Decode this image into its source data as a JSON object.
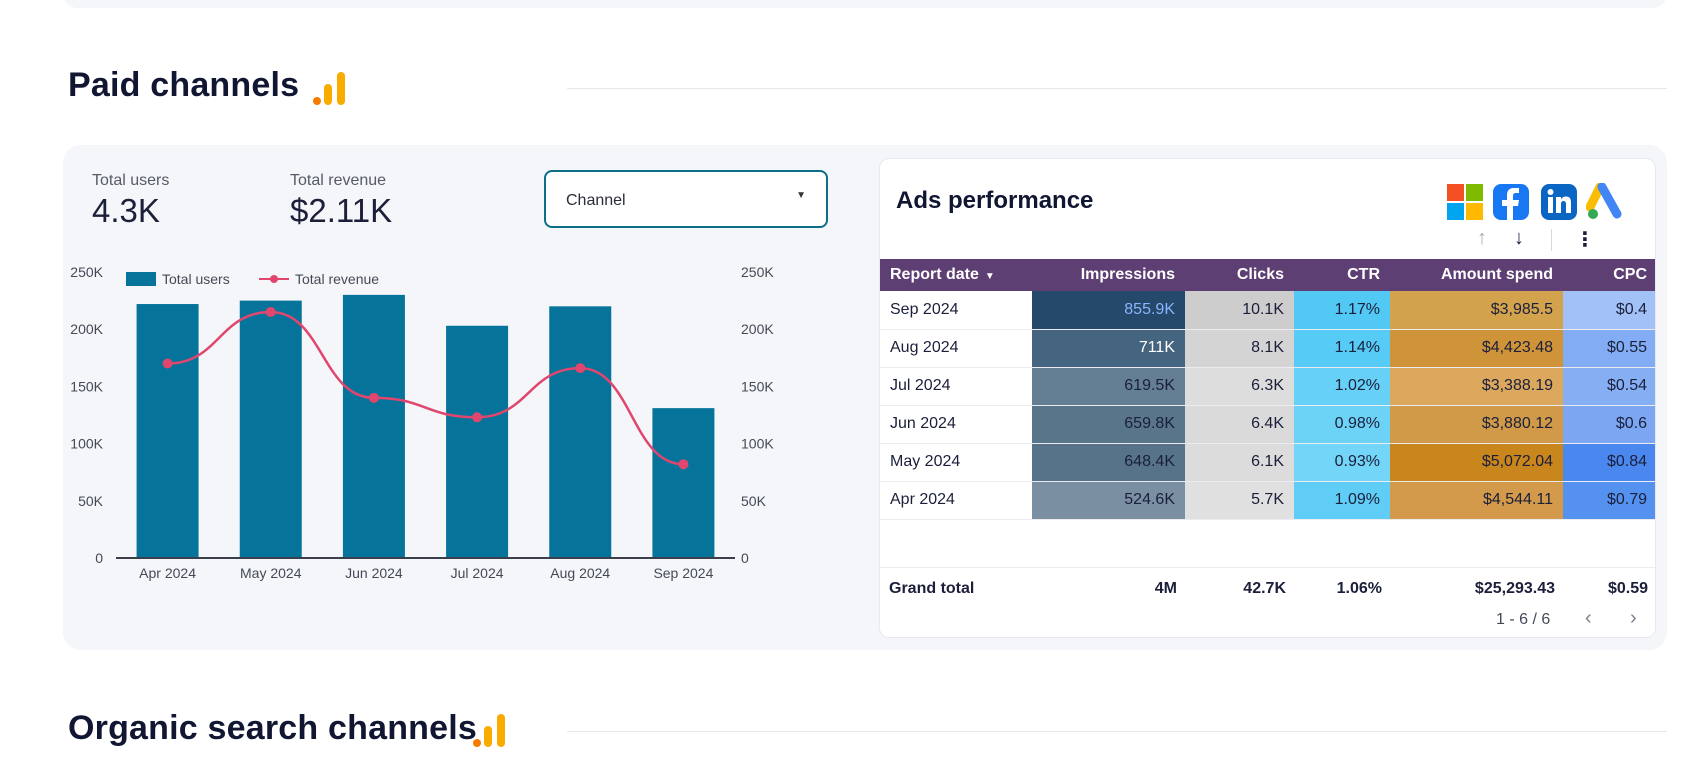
{
  "sections": {
    "paid_title": "Paid channels",
    "organic_title": "Organic search channels"
  },
  "kpis": {
    "users_label": "Total users",
    "users_value": "4.3K",
    "revenue_label": "Total revenue",
    "revenue_value": "$2.11K"
  },
  "filter": {
    "label": "Channel"
  },
  "chart_data": {
    "type": "bar",
    "categories": [
      "Apr 2024",
      "May 2024",
      "Jun 2024",
      "Jul 2024",
      "Aug 2024",
      "Sep 2024"
    ],
    "series": [
      {
        "name": "Total users",
        "kind": "bar",
        "axis": "left",
        "values": [
          222000,
          225000,
          230000,
          203000,
          220000,
          131000
        ]
      },
      {
        "name": "Total revenue",
        "kind": "line",
        "axis": "right",
        "values": [
          170000,
          215000,
          140000,
          123000,
          166000,
          82000
        ]
      }
    ],
    "y_ticks": [
      "0",
      "50K",
      "100K",
      "150K",
      "200K",
      "250K"
    ],
    "ylim": [
      0,
      250000
    ],
    "legend": "top-left",
    "colors": {
      "bar": "#06749a",
      "line": "#e0466e"
    }
  },
  "ads": {
    "title": "Ads performance",
    "brand_icons": [
      "microsoft-icon",
      "facebook-icon",
      "linkedin-icon",
      "google-ads-icon"
    ],
    "columns": [
      "Report date",
      "Impressions",
      "Clicks",
      "CTR",
      "Amount spend",
      "CPC"
    ],
    "rows": [
      [
        "Sep 2024",
        "855.9K",
        "10.1K",
        "1.17%",
        "$3,985.5",
        "$0.4"
      ],
      [
        "Aug 2024",
        "711K",
        "8.1K",
        "1.14%",
        "$4,423.48",
        "$0.55"
      ],
      [
        "Jul 2024",
        "619.5K",
        "6.3K",
        "1.02%",
        "$3,388.19",
        "$0.54"
      ],
      [
        "Jun 2024",
        "659.8K",
        "6.4K",
        "0.98%",
        "$3,880.12",
        "$0.6"
      ],
      [
        "May 2024",
        "648.4K",
        "6.1K",
        "0.93%",
        "$5,072.04",
        "$0.84"
      ],
      [
        "Apr 2024",
        "524.6K",
        "5.7K",
        "1.09%",
        "$4,544.11",
        "$0.79"
      ]
    ],
    "cell_colors": [
      [
        "#25496a",
        "#cdcdcd",
        "#52c9f4",
        "#d3a24c",
        "#a2c1f6"
      ],
      [
        "#45647f",
        "#d4d4d4",
        "#55cbf5",
        "#cf943a",
        "#82acf3"
      ],
      [
        "#647e93",
        "#dddddd",
        "#66d0f6",
        "#dba85e",
        "#86aff3"
      ],
      [
        "#587589",
        "#dadada",
        "#6dd3f6",
        "#d19a48",
        "#7aa6f2"
      ],
      [
        "#567389",
        "#dcdcdc",
        "#73d5f7",
        "#c9861c",
        "#4a87ee"
      ],
      [
        "#7a8fa1",
        "#e0e0e0",
        "#5fcdf5",
        "#d29a4a",
        "#5592ef"
      ]
    ],
    "text_colors": [
      "#8ab4ff",
      "#ffffff",
      "#1b1f3a",
      "#1b1f3a",
      "#1b1f3a",
      "#1b1f3a"
    ],
    "grand_total": {
      "label": "Grand total",
      "values": [
        "4M",
        "42.7K",
        "1.06%",
        "$25,293.43",
        "$0.59"
      ]
    },
    "pagination": "1 - 6 / 6"
  }
}
